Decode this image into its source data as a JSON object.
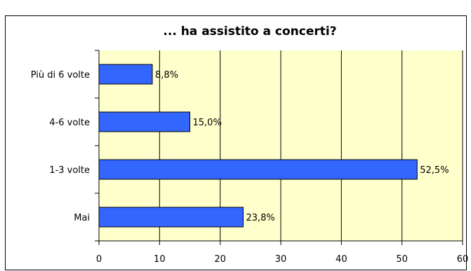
{
  "chart_data": {
    "type": "bar",
    "orientation": "horizontal",
    "title": "... ha assistito a concerti?",
    "xlabel": "",
    "ylabel": "",
    "categories": [
      "Più di 6 volte",
      "4-6 volte",
      "1-3 volte",
      "Mai"
    ],
    "values": [
      8.8,
      15.0,
      52.5,
      23.8
    ],
    "data_labels": [
      "8,8%",
      "15,0%",
      "52,5%",
      "23,8%"
    ],
    "xlim": [
      0,
      60
    ],
    "xticks": [
      0,
      10,
      20,
      30,
      40,
      50,
      60
    ],
    "grid": "vertical",
    "legend": "none",
    "colors": {
      "bar": "#3366FF",
      "plot_background": "#FFFFCC",
      "grid": "#000000"
    }
  }
}
